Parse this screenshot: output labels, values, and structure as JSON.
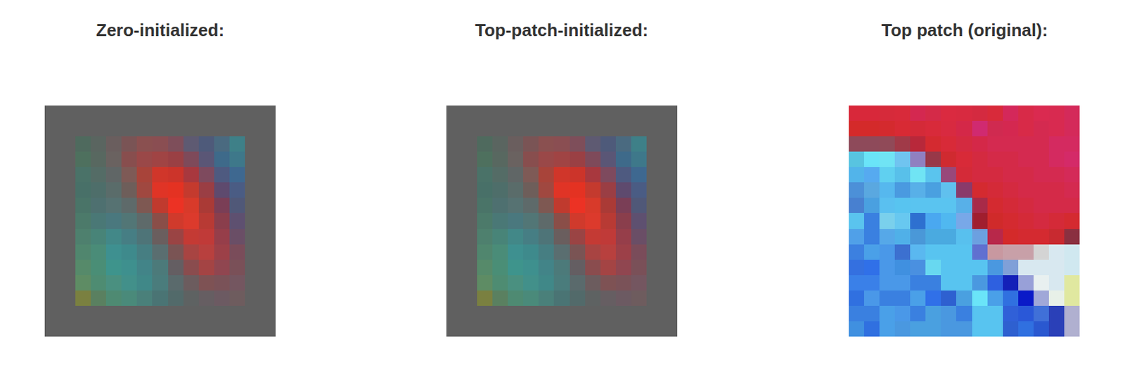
{
  "chart_data": [
    {
      "type": "image",
      "title": "Zero-initialized:",
      "tick_labels": false,
      "pixels": [
        [
          "#606060",
          "#606060",
          "#606060",
          "#606060",
          "#606060",
          "#606060",
          "#606060",
          "#606060",
          "#606060",
          "#606060",
          "#606060",
          "#606060",
          "#606060",
          "#606060",
          "#606060"
        ],
        [
          "#606060",
          "#606060",
          "#606060",
          "#606060",
          "#606060",
          "#606060",
          "#606060",
          "#606060",
          "#606060",
          "#606060",
          "#606060",
          "#606060",
          "#606060",
          "#606060",
          "#606060"
        ],
        [
          "#606060",
          "#606060",
          "#4f6a5e",
          "#5a6560",
          "#6a5e5e",
          "#7a5455",
          "#8a5050",
          "#8a4e52",
          "#7e4e5a",
          "#5e5a72",
          "#4e5a7a",
          "#4a6a80",
          "#3e8088",
          "#606060",
          "#606060"
        ],
        [
          "#606060",
          "#606060",
          "#4e705e",
          "#586860",
          "#6a6260",
          "#884e4e",
          "#9a4848",
          "#a04444",
          "#9a4044",
          "#7e4a5a",
          "#5a5676",
          "#3e6a8a",
          "#3e788a",
          "#606060",
          "#606060"
        ],
        [
          "#606060",
          "#606060",
          "#4a7268",
          "#546c66",
          "#606666",
          "#7e5a56",
          "#a8443a",
          "#d0362a",
          "#cc342a",
          "#a8383e",
          "#7e4a5e",
          "#4e5a80",
          "#3e6890",
          "#606060",
          "#606060"
        ],
        [
          "#606060",
          "#606060",
          "#487068",
          "#4e6e6a",
          "#5a6c6a",
          "#6e5e5a",
          "#a04840",
          "#e03426",
          "#e43222",
          "#c43a2e",
          "#9a3e44",
          "#5e4a6e",
          "#4a5c84",
          "#606060",
          "#606060"
        ],
        [
          "#606060",
          "#606060",
          "#4a7468",
          "#4e7070",
          "#567272",
          "#5e6a6a",
          "#7e5852",
          "#c03a2e",
          "#ec3224",
          "#d83a2a",
          "#aa3a36",
          "#7a3e56",
          "#505878",
          "#606060",
          "#606060"
        ],
        [
          "#606060",
          "#606060",
          "#4c7a6a",
          "#4a7876",
          "#4a787e",
          "#527676",
          "#5e6a6a",
          "#8a4e48",
          "#d03a2c",
          "#dc3a2c",
          "#b83a34",
          "#8a3e4c",
          "#5e5070",
          "#606060",
          "#606060"
        ],
        [
          "#606060",
          "#606060",
          "#4e806e",
          "#488478",
          "#428888",
          "#467e84",
          "#4e7478",
          "#6a5e5e",
          "#9a4444",
          "#c43a34",
          "#c03a38",
          "#963e4a",
          "#6a4e66",
          "#606060",
          "#606060"
        ],
        [
          "#606060",
          "#606060",
          "#50866e",
          "#4a8c78",
          "#3e9090",
          "#3e8a8c",
          "#467e82",
          "#5a6e70",
          "#7a5454",
          "#a84442",
          "#b8403e",
          "#9c4048",
          "#7a4c5a",
          "#606060",
          "#606060"
        ],
        [
          "#606060",
          "#606060",
          "#568a6a",
          "#4a8e76",
          "#3e948c",
          "#3e908e",
          "#428488",
          "#4c7a7a",
          "#645e62",
          "#8a4c4e",
          "#a44444",
          "#904650",
          "#7a5058",
          "#606060",
          "#606060"
        ],
        [
          "#606060",
          "#606060",
          "#5e8c64",
          "#4e8c72",
          "#4a9080",
          "#42908a",
          "#408888",
          "#4a7c7c",
          "#5a6a6c",
          "#6c5c5e",
          "#7e5254",
          "#7a5258",
          "#745660",
          "#606060",
          "#606060"
        ],
        [
          "#606060",
          "#606060",
          "#7a8040",
          "#5a8060",
          "#4e8a72",
          "#4a8a7a",
          "#4a807a",
          "#4a7474",
          "#526a6a",
          "#5e6262",
          "#665e62",
          "#6c5a62",
          "#6e5c5e",
          "#606060",
          "#606060"
        ],
        [
          "#606060",
          "#606060",
          "#606060",
          "#606060",
          "#606060",
          "#606060",
          "#606060",
          "#606060",
          "#606060",
          "#606060",
          "#606060",
          "#606060",
          "#606060",
          "#606060",
          "#606060"
        ],
        [
          "#606060",
          "#606060",
          "#606060",
          "#606060",
          "#606060",
          "#606060",
          "#606060",
          "#606060",
          "#606060",
          "#606060",
          "#606060",
          "#606060",
          "#606060",
          "#606060",
          "#606060"
        ]
      ]
    },
    {
      "type": "image",
      "title": "Top-patch-initialized:",
      "tick_labels": false,
      "pixels": [
        [
          "#606060",
          "#606060",
          "#606060",
          "#606060",
          "#606060",
          "#606060",
          "#606060",
          "#606060",
          "#606060",
          "#606060",
          "#606060",
          "#606060",
          "#606060",
          "#606060",
          "#606060"
        ],
        [
          "#606060",
          "#606060",
          "#606060",
          "#606060",
          "#606060",
          "#606060",
          "#606060",
          "#606060",
          "#606060",
          "#606060",
          "#606060",
          "#606060",
          "#606060",
          "#606060",
          "#606060"
        ],
        [
          "#606060",
          "#606060",
          "#4f6a5e",
          "#5a6560",
          "#6a5e5e",
          "#7a5455",
          "#8a5050",
          "#8a4e52",
          "#7e4e5a",
          "#5e5a72",
          "#4e5a7a",
          "#4a6a80",
          "#3e8088",
          "#606060",
          "#606060"
        ],
        [
          "#606060",
          "#606060",
          "#4e705e",
          "#586860",
          "#6a6260",
          "#884e4e",
          "#9a4848",
          "#a04444",
          "#9a4044",
          "#7e4a5a",
          "#5a5676",
          "#3e6a8a",
          "#3e788a",
          "#606060",
          "#606060"
        ],
        [
          "#606060",
          "#606060",
          "#4a7268",
          "#546c66",
          "#606666",
          "#7e5a56",
          "#a8443a",
          "#d0362a",
          "#cc342a",
          "#a8383e",
          "#7e4a5e",
          "#4e5a80",
          "#3e6890",
          "#606060",
          "#606060"
        ],
        [
          "#606060",
          "#606060",
          "#487068",
          "#4e6e6a",
          "#5a6c6a",
          "#6e5e5a",
          "#a04840",
          "#e03426",
          "#e43222",
          "#c43a2e",
          "#9a3e44",
          "#5e4a6e",
          "#4a5c84",
          "#606060",
          "#606060"
        ],
        [
          "#606060",
          "#606060",
          "#4a7468",
          "#4e7070",
          "#567272",
          "#5e6a6a",
          "#7e5852",
          "#c03a2e",
          "#ec3224",
          "#d83a2a",
          "#aa3a36",
          "#7a3e56",
          "#505878",
          "#606060",
          "#606060"
        ],
        [
          "#606060",
          "#606060",
          "#4c7a6a",
          "#4a7876",
          "#4a787e",
          "#527676",
          "#5e6a6a",
          "#8a4e48",
          "#d03a2c",
          "#dc3a2c",
          "#b83a34",
          "#8a3e4c",
          "#5e5070",
          "#606060",
          "#606060"
        ],
        [
          "#606060",
          "#606060",
          "#4e806e",
          "#488478",
          "#428888",
          "#467e84",
          "#4e7478",
          "#6a5e5e",
          "#9a4444",
          "#c43a34",
          "#c03a38",
          "#963e4a",
          "#6a4e66",
          "#606060",
          "#606060"
        ],
        [
          "#606060",
          "#606060",
          "#50866e",
          "#4a8c78",
          "#3e9090",
          "#3e8a8c",
          "#467e82",
          "#5a6e70",
          "#7a5454",
          "#a84442",
          "#b8403e",
          "#9c4048",
          "#7a4c5a",
          "#606060",
          "#606060"
        ],
        [
          "#606060",
          "#606060",
          "#568a6a",
          "#4a8e76",
          "#3e948c",
          "#3e908e",
          "#428488",
          "#4c7a7a",
          "#645e62",
          "#8a4c4e",
          "#a44444",
          "#904650",
          "#7a5058",
          "#606060",
          "#606060"
        ],
        [
          "#606060",
          "#606060",
          "#5e8c64",
          "#4e8c72",
          "#4a9080",
          "#42908a",
          "#408888",
          "#4a7c7c",
          "#5a6a6c",
          "#6c5c5e",
          "#7e5254",
          "#7a5258",
          "#745660",
          "#606060",
          "#606060"
        ],
        [
          "#606060",
          "#606060",
          "#7a8040",
          "#5a8060",
          "#4e8a72",
          "#4a8a7a",
          "#4a807a",
          "#4a7474",
          "#526a6a",
          "#5e6262",
          "#665e62",
          "#6c5a62",
          "#6e5c5e",
          "#606060",
          "#606060"
        ],
        [
          "#606060",
          "#606060",
          "#606060",
          "#606060",
          "#606060",
          "#606060",
          "#606060",
          "#606060",
          "#606060",
          "#606060",
          "#606060",
          "#606060",
          "#606060",
          "#606060",
          "#606060"
        ],
        [
          "#606060",
          "#606060",
          "#606060",
          "#606060",
          "#606060",
          "#606060",
          "#606060",
          "#606060",
          "#606060",
          "#606060",
          "#606060",
          "#606060",
          "#606060",
          "#606060",
          "#606060"
        ]
      ]
    },
    {
      "type": "image",
      "title": "Top patch (original):",
      "tick_labels": false,
      "pixels": [
        [
          "#d8283a",
          "#d8283a",
          "#d62a3a",
          "#d82a3a",
          "#d42850",
          "#d42a48",
          "#da2a40",
          "#d82a40",
          "#d42a40",
          "#d82a3a",
          "#d4285a",
          "#d82a48",
          "#da2a50",
          "#d82a50",
          "#d42a5a"
        ],
        [
          "#d42a2a",
          "#d42a2a",
          "#d42a2e",
          "#d82a34",
          "#d42a38",
          "#d82a3a",
          "#d82a40",
          "#d42848",
          "#d02a70",
          "#d02a50",
          "#d42850",
          "#d82a48",
          "#d42a50",
          "#d82a50",
          "#d42a5a"
        ],
        [
          "#8e4a5a",
          "#8e4a5a",
          "#904a58",
          "#a03a48",
          "#b8283a",
          "#d42a30",
          "#d82a38",
          "#d42a40",
          "#d42848",
          "#d42a50",
          "#d42a50",
          "#d42a50",
          "#d42a50",
          "#d42a60",
          "#d42a60"
        ],
        [
          "#58c4e0",
          "#6ae4f8",
          "#70e4f4",
          "#70c4f0",
          "#9080c0",
          "#983848",
          "#d02a30",
          "#d82a38",
          "#d42a40",
          "#d42a48",
          "#d42a48",
          "#d42a50",
          "#d42a50",
          "#d42a60",
          "#d42a68"
        ],
        [
          "#52b4ea",
          "#56aaf0",
          "#60d0f0",
          "#58c0ea",
          "#70e4f4",
          "#5ac4ee",
          "#98487a",
          "#d42a38",
          "#d42a40",
          "#d42a40",
          "#d42a48",
          "#d42a48",
          "#d42a50",
          "#d42a50",
          "#d42a58"
        ],
        [
          "#4c90d8",
          "#5aa8e0",
          "#56b8ee",
          "#4a9ae0",
          "#58b0e8",
          "#4aa0e0",
          "#60c0ee",
          "#8a3a6a",
          "#d42a30",
          "#d42a38",
          "#d42a40",
          "#d42a48",
          "#d42a48",
          "#d42a48",
          "#d42a50"
        ],
        [
          "#4880d0",
          "#4aa0e0",
          "#5ac0f0",
          "#58c4f0",
          "#5ac4f0",
          "#5ac4f0",
          "#5ac4f0",
          "#58b0e8",
          "#a82a48",
          "#d42a30",
          "#d42a38",
          "#d42a40",
          "#d42a48",
          "#d42a48",
          "#d42a48"
        ],
        [
          "#5ac4ee",
          "#3a80e0",
          "#7ad0ec",
          "#68c8f0",
          "#2e70d0",
          "#4aa8f0",
          "#50b8f0",
          "#78a8e8",
          "#a01e2e",
          "#d02a2a",
          "#d42a30",
          "#d42a38",
          "#d42a40",
          "#d42a38",
          "#d42a30"
        ],
        [
          "#50a0e8",
          "#3a80e0",
          "#56a8e8",
          "#50b0e8",
          "#4a98d8",
          "#4aaae0",
          "#4aaae0",
          "#58c0ee",
          "#6ca0e0",
          "#b8284a",
          "#d42a2a",
          "#d42a30",
          "#d42a30",
          "#c82a30",
          "#8a3040"
        ],
        [
          "#3c80e0",
          "#4aa0e8",
          "#4a98e8",
          "#3c70d0",
          "#5ab8f0",
          "#58c4f0",
          "#58c4f0",
          "#58c4f0",
          "#6070d0",
          "#c898a0",
          "#c8a0a8",
          "#c8a0a8",
          "#d4d4d4",
          "#d8e8f0",
          "#d0e8f0"
        ],
        [
          "#3470e0",
          "#3070e8",
          "#4a98e8",
          "#4090e0",
          "#4a90e0",
          "#68d8f0",
          "#58c4f0",
          "#58c4f0",
          "#58c4f0",
          "#4a98e0",
          "#80a0d8",
          "#d8e8f0",
          "#d8e8f0",
          "#d8e8f0",
          "#d0e8f0"
        ],
        [
          "#3a80e8",
          "#3a80e8",
          "#4a98e8",
          "#4a98e8",
          "#3a80e0",
          "#3a80e0",
          "#58c4f0",
          "#58c4f0",
          "#4a98e0",
          "#2e60e0",
          "#1420b8",
          "#98a0d8",
          "#e8f0f0",
          "#d8e8f0",
          "#e0e8a0"
        ],
        [
          "#3070e0",
          "#4a98e8",
          "#3a80e0",
          "#3a80e0",
          "#4aa0e8",
          "#3070e8",
          "#2e60d0",
          "#4aa0e0",
          "#6ae4f8",
          "#4aa0e8",
          "#3070e0",
          "#0a1ac8",
          "#a0a8d8",
          "#e8f0e8",
          "#e0e8a0"
        ],
        [
          "#3a80e0",
          "#3a80e0",
          "#4aa0e8",
          "#4a98e8",
          "#3a80e0",
          "#4aa0e0",
          "#4a98e0",
          "#3a80e0",
          "#58c4f0",
          "#58c4f0",
          "#3060d8",
          "#2a58d8",
          "#4070d8",
          "#2a40b8",
          "#b0b0d0"
        ],
        [
          "#4090e0",
          "#3070e0",
          "#4aa0e8",
          "#4a98e0",
          "#4aa0e0",
          "#4aa0e0",
          "#4a98e0",
          "#4a98e0",
          "#58c4f0",
          "#58c4f0",
          "#2e60d0",
          "#3070e0",
          "#2a58d0",
          "#2a40b8",
          "#b0b0d0"
        ]
      ]
    }
  ]
}
